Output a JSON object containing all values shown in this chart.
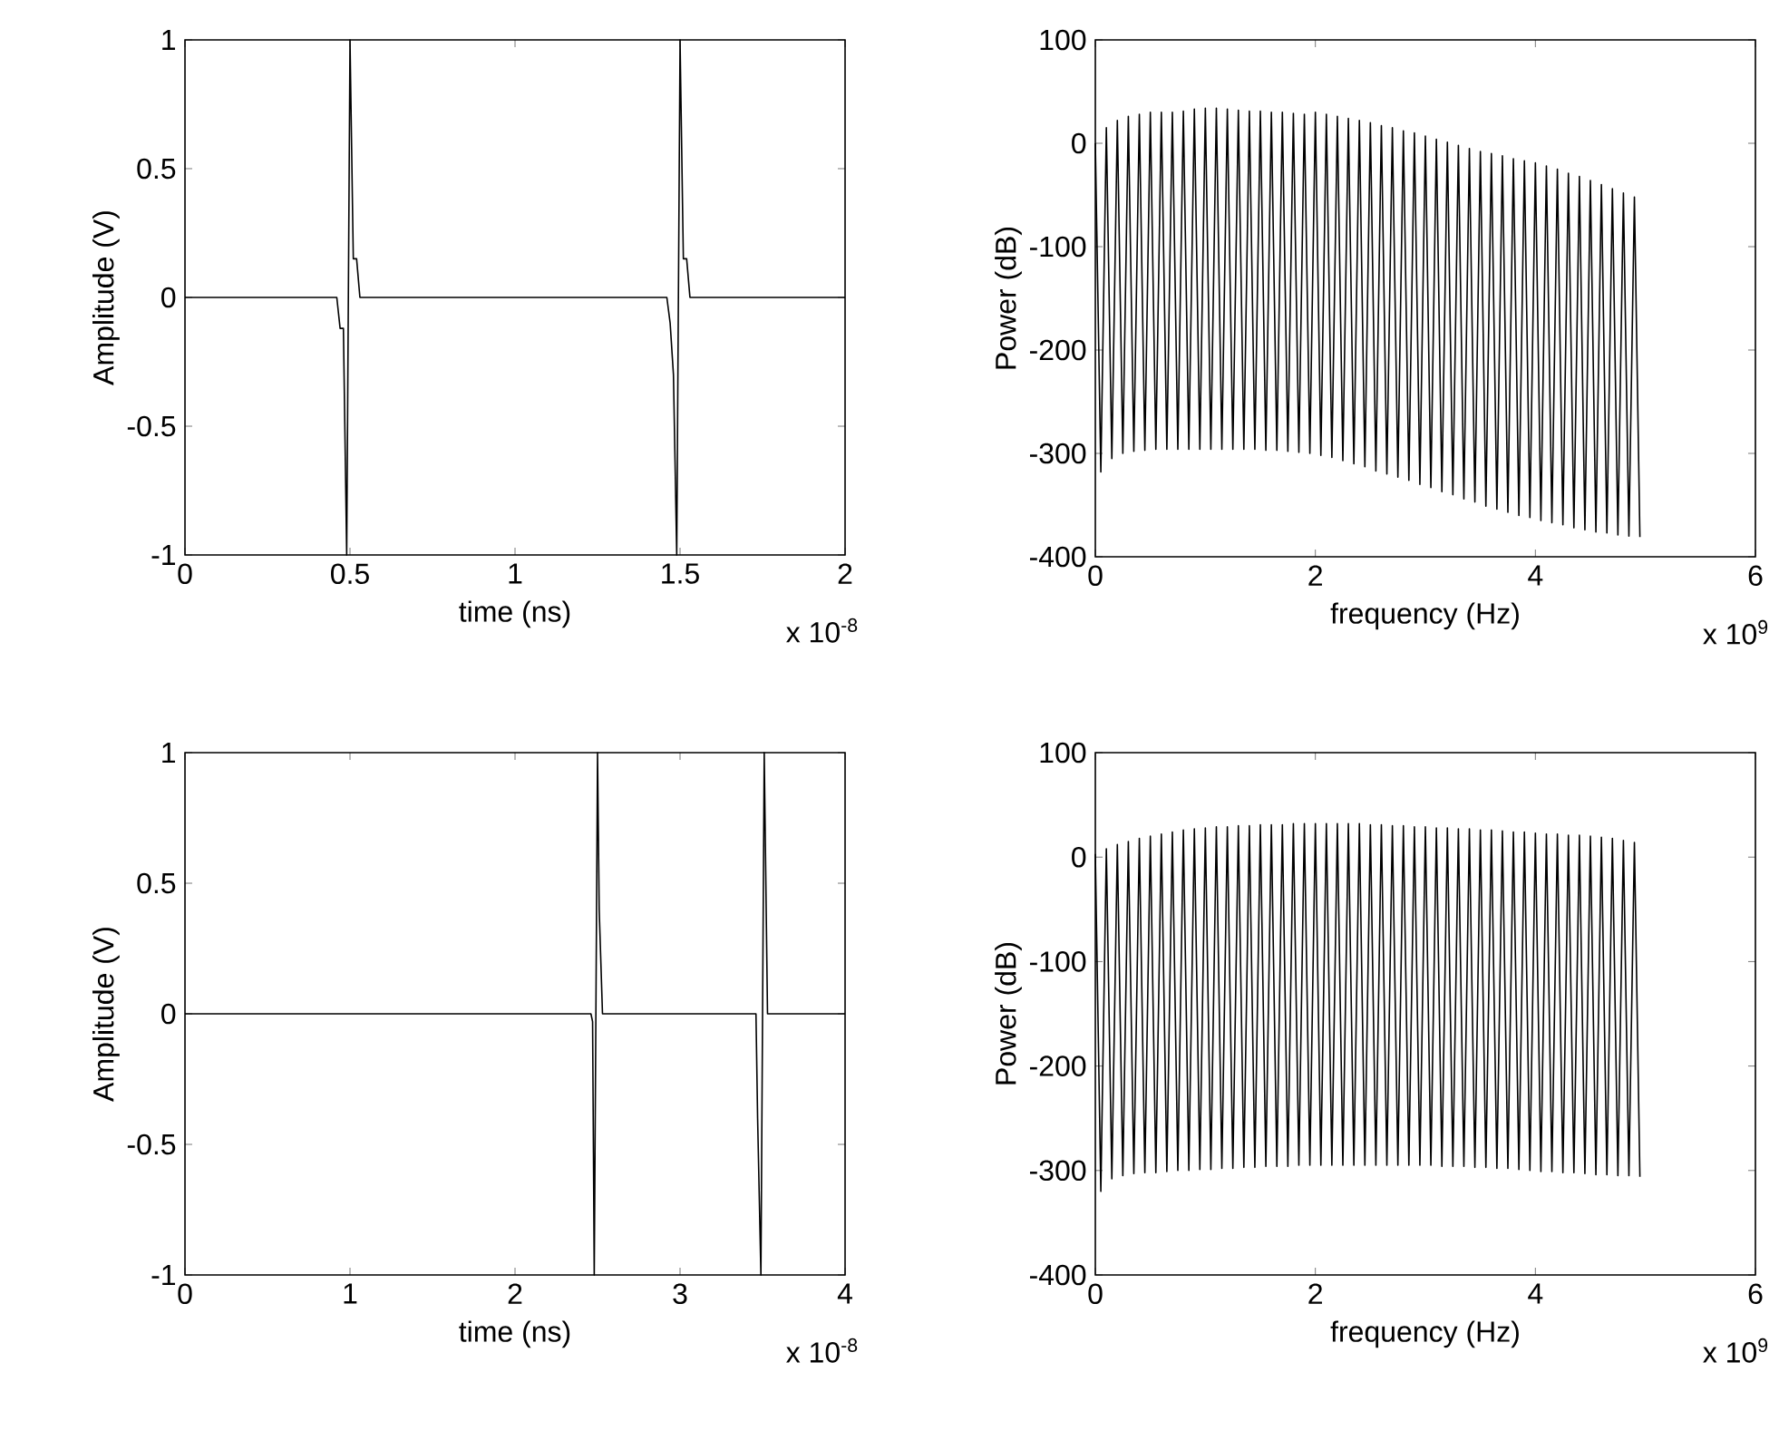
{
  "chart_data": [
    {
      "type": "line",
      "xlabel": "time (ns)",
      "ylabel": "Amplitude (V)",
      "annotations": [
        "x 10$^{-8}$"
      ],
      "xlim": [
        0,
        2
      ],
      "ylim": [
        -1,
        1
      ],
      "xticks": [
        0,
        0.5,
        1,
        1.5,
        2
      ],
      "yticks": [
        -1,
        -0.5,
        0,
        0.5,
        1
      ],
      "series": [
        {
          "color": "#000000",
          "x": [
            0,
            0.46,
            0.47,
            0.48,
            0.49,
            0.5,
            0.51,
            0.52,
            0.53,
            1.46,
            1.47,
            1.48,
            1.49,
            1.5,
            1.51,
            1.52,
            1.53,
            2
          ],
          "values": [
            0,
            0,
            -0.12,
            -0.12,
            -1,
            1,
            0.15,
            0.15,
            0,
            0,
            -0.1,
            -0.3,
            -1,
            1,
            0.15,
            0.15,
            0,
            0
          ]
        }
      ]
    },
    {
      "type": "line",
      "xlabel": "frequency (Hz)",
      "ylabel": "Power (dB)",
      "annotations": [
        "x 10$^{9}$"
      ],
      "xlim": [
        0,
        6
      ],
      "ylim": [
        -400,
        100
      ],
      "xticks": [
        0,
        2,
        4,
        6
      ],
      "yticks": [
        -400,
        -300,
        -200,
        -100,
        0,
        100
      ],
      "series": [
        {
          "color": "#000000",
          "x": [
            0,
            0.05,
            0.1,
            0.15,
            0.2,
            0.25,
            0.3,
            0.35,
            0.4,
            0.45,
            0.5,
            0.55,
            0.6,
            0.65,
            0.7,
            0.75,
            0.8,
            0.85,
            0.9,
            0.95,
            1,
            1.05,
            1.1,
            1.15,
            1.2,
            1.25,
            1.3,
            1.35,
            1.4,
            1.45,
            1.5,
            1.55,
            1.6,
            1.65,
            1.7,
            1.75,
            1.8,
            1.85,
            1.9,
            1.95,
            2,
            2.05,
            2.1,
            2.15,
            2.2,
            2.25,
            2.3,
            2.35,
            2.4,
            2.45,
            2.5,
            2.55,
            2.6,
            2.65,
            2.7,
            2.75,
            2.8,
            2.85,
            2.9,
            2.95,
            3,
            3.05,
            3.1,
            3.15,
            3.2,
            3.25,
            3.3,
            3.35,
            3.4,
            3.45,
            3.5,
            3.55,
            3.6,
            3.65,
            3.7,
            3.75,
            3.8,
            3.85,
            3.9,
            3.95,
            4,
            4.05,
            4.1,
            4.15,
            4.2,
            4.25,
            4.3,
            4.35,
            4.4,
            4.45,
            4.5,
            4.55,
            4.6,
            4.65,
            4.7,
            4.75,
            4.8,
            4.85,
            4.9,
            4.95
          ],
          "values": [
            0,
            -318,
            15,
            -305,
            22,
            -300,
            26,
            -298,
            28,
            -297,
            30,
            -296,
            30,
            -296,
            30,
            -296,
            31,
            -296,
            33,
            -296,
            34,
            -296,
            34,
            -296,
            33,
            -296,
            32,
            -296,
            31,
            -296,
            31,
            -297,
            30,
            -297,
            30,
            -298,
            29,
            -299,
            28,
            -300,
            30,
            -302,
            28,
            -304,
            26,
            -307,
            24,
            -310,
            22,
            -313,
            20,
            -317,
            17,
            -320,
            15,
            -323,
            12,
            -326,
            10,
            -330,
            7,
            -333,
            4,
            -337,
            1,
            -340,
            -2,
            -344,
            -5,
            -347,
            -8,
            -351,
            -10,
            -354,
            -12,
            -357,
            -15,
            -360,
            -17,
            -362,
            -19,
            -365,
            -22,
            -367,
            -25,
            -369,
            -29,
            -372,
            -32,
            -374,
            -36,
            -376,
            -40,
            -377,
            -44,
            -379,
            -48,
            -380,
            -52,
            -381
          ]
        }
      ]
    },
    {
      "type": "line",
      "xlabel": "time (ns)",
      "ylabel": "Amplitude (V)",
      "annotations": [
        "x 10$^{-8}$"
      ],
      "xlim": [
        0,
        4
      ],
      "ylim": [
        -1,
        1
      ],
      "xticks": [
        0,
        1,
        2,
        3,
        4
      ],
      "yticks": [
        -1,
        -0.5,
        0,
        0.5,
        1
      ],
      "series": [
        {
          "color": "#000000",
          "x": [
            0,
            2.46,
            2.47,
            2.48,
            2.5,
            2.51,
            2.53,
            3.46,
            3.47,
            3.49,
            3.51,
            3.53,
            4
          ],
          "values": [
            0,
            0,
            -0.03,
            -1,
            1,
            0.4,
            0,
            0,
            -0.4,
            -1,
            1,
            0,
            0
          ]
        }
      ]
    },
    {
      "type": "line",
      "xlabel": "frequency (Hz)",
      "ylabel": "Power (dB)",
      "annotations": [
        "x 10$^{9}$"
      ],
      "xlim": [
        0,
        6
      ],
      "ylim": [
        -400,
        100
      ],
      "xticks": [
        0,
        2,
        4,
        6
      ],
      "yticks": [
        -400,
        -300,
        -200,
        -100,
        0,
        100
      ],
      "series": [
        {
          "color": "#000000",
          "x": [
            0,
            0.05,
            0.1,
            0.15,
            0.2,
            0.25,
            0.3,
            0.35,
            0.4,
            0.45,
            0.5,
            0.55,
            0.6,
            0.65,
            0.7,
            0.75,
            0.8,
            0.85,
            0.9,
            0.95,
            1,
            1.05,
            1.1,
            1.15,
            1.2,
            1.25,
            1.3,
            1.35,
            1.4,
            1.45,
            1.5,
            1.55,
            1.6,
            1.65,
            1.7,
            1.75,
            1.8,
            1.85,
            1.9,
            1.95,
            2,
            2.05,
            2.1,
            2.15,
            2.2,
            2.25,
            2.3,
            2.35,
            2.4,
            2.45,
            2.5,
            2.55,
            2.6,
            2.65,
            2.7,
            2.75,
            2.8,
            2.85,
            2.9,
            2.95,
            3,
            3.05,
            3.1,
            3.15,
            3.2,
            3.25,
            3.3,
            3.35,
            3.4,
            3.45,
            3.5,
            3.55,
            3.6,
            3.65,
            3.7,
            3.75,
            3.8,
            3.85,
            3.9,
            3.95,
            4,
            4.05,
            4.1,
            4.15,
            4.2,
            4.25,
            4.3,
            4.35,
            4.4,
            4.45,
            4.5,
            4.55,
            4.6,
            4.65,
            4.7,
            4.75,
            4.8,
            4.85,
            4.9,
            4.95
          ],
          "values": [
            3,
            -320,
            8,
            -308,
            12,
            -305,
            15,
            -303,
            18,
            -302,
            20,
            -302,
            22,
            -301,
            24,
            -300,
            26,
            -300,
            27,
            -299,
            28,
            -299,
            29,
            -298,
            29,
            -298,
            30,
            -297,
            30,
            -297,
            31,
            -296,
            31,
            -296,
            31,
            -296,
            32,
            -295,
            32,
            -295,
            32,
            -295,
            32,
            -295,
            32,
            -295,
            32,
            -295,
            32,
            -295,
            31,
            -295,
            31,
            -295,
            30,
            -295,
            30,
            -295,
            29,
            -295,
            29,
            -295,
            28,
            -296,
            28,
            -296,
            27,
            -296,
            27,
            -297,
            26,
            -297,
            26,
            -298,
            25,
            -298,
            24,
            -299,
            24,
            -300,
            23,
            -301,
            22,
            -301,
            22,
            -302,
            21,
            -302,
            21,
            -303,
            20,
            -304,
            19,
            -304,
            18,
            -305,
            16,
            -305,
            14,
            -306
          ]
        }
      ]
    }
  ]
}
